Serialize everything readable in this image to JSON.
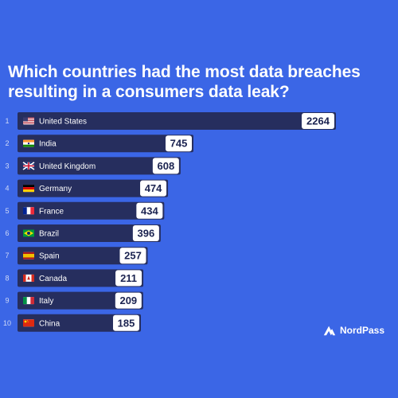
{
  "colors": {
    "background": "#3b66e6",
    "bar": "#262e5e",
    "value_box": "#ffffff",
    "value_text": "#1b2350"
  },
  "brand": {
    "name": "NordPass",
    "logo_icon": "nordpass-mountain-icon"
  },
  "chart_data": {
    "type": "bar",
    "orientation": "horizontal",
    "title": "Which countries had the most data breaches resulting in a consumers data leak?",
    "ranks": [
      "1",
      "2",
      "3",
      "4",
      "5",
      "6",
      "7",
      "8",
      "9",
      "10"
    ],
    "categories": [
      "United States",
      "India",
      "United Kingdom",
      "Germany",
      "France",
      "Brazil",
      "Spain",
      "Canada",
      "Italy",
      "China"
    ],
    "flag_icons": [
      "flag-us-icon",
      "flag-in-icon",
      "flag-gb-icon",
      "flag-de-icon",
      "flag-fr-icon",
      "flag-br-icon",
      "flag-es-icon",
      "flag-ca-icon",
      "flag-it-icon",
      "flag-cn-icon"
    ],
    "values": [
      2264,
      745,
      608,
      474,
      434,
      396,
      257,
      211,
      209,
      185
    ],
    "value_labels": [
      "2264",
      "745",
      "608",
      "474",
      "434",
      "396",
      "257",
      "211",
      "209",
      "185"
    ],
    "grid": false,
    "legend": "none"
  }
}
